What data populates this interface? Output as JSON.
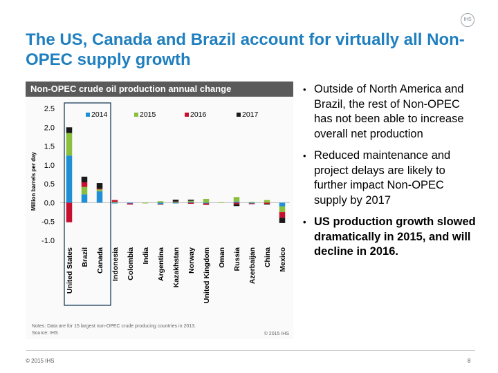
{
  "logo_text": "IHS",
  "title": "The US, Canada and Brazil account for virtually all Non-OPEC supply growth",
  "chart_data": {
    "type": "bar",
    "stacked": true,
    "title": "Non-OPEC crude oil production annual change",
    "ylabel": "Million barrels per day",
    "xlabel": "",
    "ylim": [
      -1.0,
      2.5
    ],
    "yticks": [
      -1.0,
      -0.5,
      0.0,
      0.5,
      1.0,
      1.5,
      2.0,
      2.5
    ],
    "ytick_labels": [
      "-1.0",
      "-0.5",
      "0.0",
      "0.5",
      "1.0",
      "1.5",
      "2.0",
      "2.5"
    ],
    "legend_position": "top",
    "categories": [
      "United States",
      "Brazil",
      "Canada",
      "Indonesia",
      "Colombia",
      "India",
      "Argentina",
      "Kazakhstan",
      "Norway",
      "United Kingdom",
      "Oman",
      "Russia",
      "Azerbaijan",
      "China",
      "Mexico"
    ],
    "highlighted_categories": [
      "United States",
      "Brazil",
      "Canada"
    ],
    "series": [
      {
        "name": "2014",
        "color": "#1f8fd6",
        "values": [
          1.25,
          0.22,
          0.3,
          -0.02,
          -0.02,
          0.0,
          -0.04,
          -0.02,
          0.02,
          -0.02,
          0.0,
          0.03,
          -0.02,
          0.0,
          -0.1
        ]
      },
      {
        "name": "2015",
        "color": "#8bbf3d",
        "values": [
          0.6,
          0.2,
          0.05,
          0.02,
          0.0,
          -0.02,
          0.04,
          0.02,
          0.03,
          0.1,
          0.01,
          0.12,
          0.02,
          0.07,
          -0.15
        ]
      },
      {
        "name": "2016",
        "color": "#c8102e",
        "values": [
          -0.52,
          0.12,
          0.02,
          0.05,
          -0.03,
          0.0,
          -0.01,
          0.01,
          -0.03,
          -0.04,
          0.0,
          -0.04,
          -0.02,
          -0.03,
          -0.15
        ]
      },
      {
        "name": "2017",
        "color": "#1a1a1a",
        "values": [
          0.15,
          0.15,
          0.15,
          0.0,
          0.0,
          0.0,
          0.0,
          0.05,
          0.03,
          0.0,
          0.0,
          -0.05,
          0.0,
          -0.02,
          -0.14
        ]
      }
    ],
    "notes": "Notes: Data are for 15 largest non-OPEC crude producing countries in 2013.",
    "source": "Source: IHS",
    "copyright": "© 2015 IHS"
  },
  "bullets": [
    {
      "text": "Outside of North America and Brazil, the rest of Non-OPEC has not been able to increase overall net production",
      "bold": false
    },
    {
      "text": "Reduced maintenance and project delays are likely to further impact Non-OPEC supply by 2017",
      "bold": false
    },
    {
      "text": "US production growth slowed dramatically in 2015, and will decline in 2016.",
      "bold": true
    }
  ],
  "footer": {
    "copyright": "© 2015 IHS",
    "page_number": "8"
  }
}
